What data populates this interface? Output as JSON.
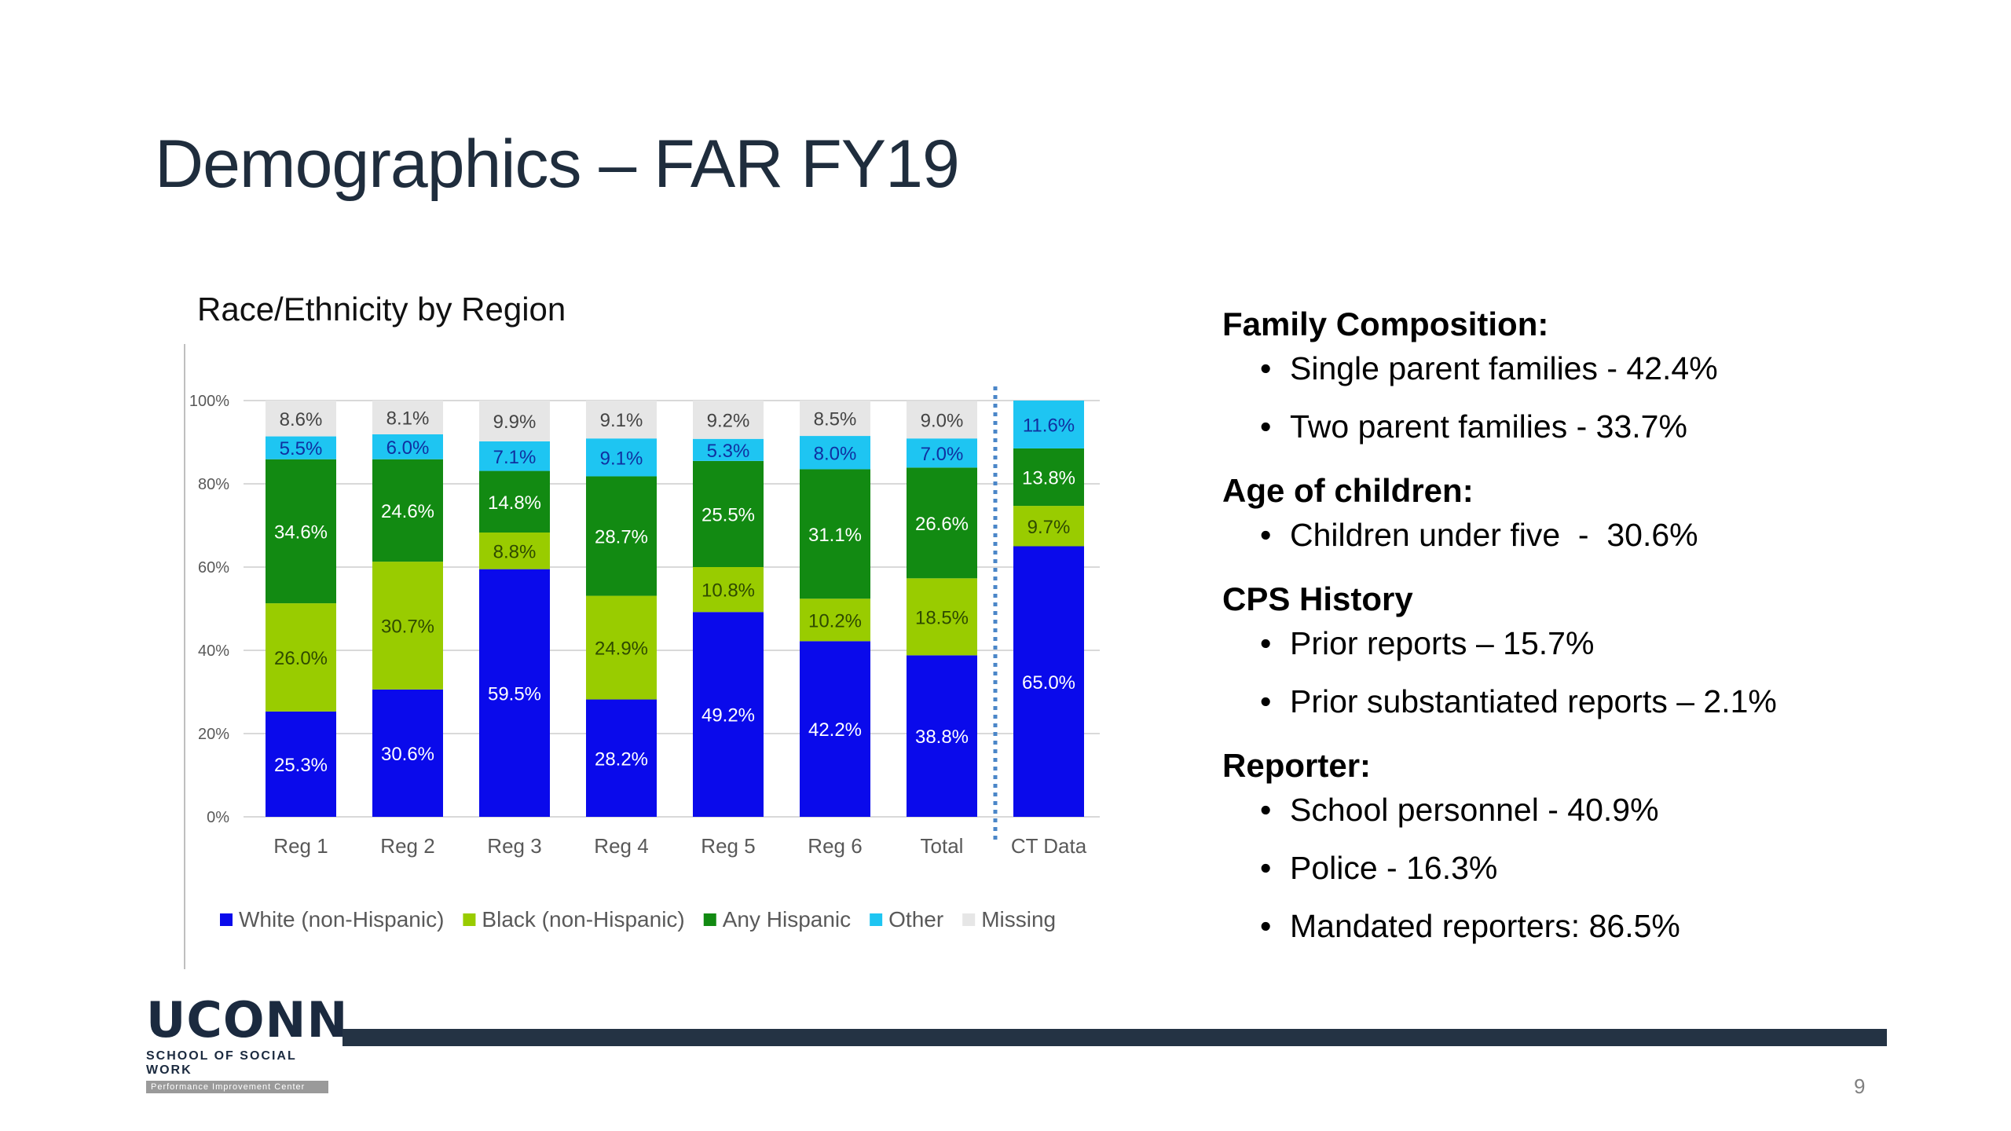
{
  "slide": {
    "title": "Demographics – FAR FY19",
    "page_number": "9"
  },
  "logo": {
    "word": "UCONN",
    "sub": "SCHOOL OF SOCIAL WORK",
    "sub2": "Performance Improvement Center"
  },
  "colors": {
    "white_non_hispanic": "#0a0aeb",
    "black_non_hispanic": "#99cc00",
    "any_hispanic": "#128a12",
    "other": "#1ec5f2",
    "missing": "#e6e6e6",
    "footer_bar": "#243344"
  },
  "chart_data": {
    "type": "bar",
    "stacked": true,
    "title": "Race/Ethnicity by Region",
    "categories": [
      "Reg 1",
      "Reg 2",
      "Reg 3",
      "Reg 4",
      "Reg 5",
      "Reg 6",
      "Total",
      "CT Data"
    ],
    "series": [
      {
        "name": "White (non-Hispanic)",
        "values": [
          25.3,
          30.6,
          59.5,
          28.2,
          49.2,
          42.2,
          38.8,
          65.0
        ],
        "labels": [
          "25.3%",
          "30.6%",
          "59.5%",
          "28.2%",
          "49.2%",
          "42.2%",
          "38.8%",
          "65.0%"
        ]
      },
      {
        "name": "Black (non-Hispanic)",
        "values": [
          26.0,
          30.7,
          8.8,
          24.9,
          10.8,
          10.2,
          18.5,
          9.7
        ],
        "labels": [
          "26.0%",
          "30.7%",
          "8.8%",
          "24.9%",
          "10.8%",
          "10.2%",
          "18.5%",
          "9.7%"
        ]
      },
      {
        "name": "Any Hispanic",
        "values": [
          34.6,
          24.6,
          14.8,
          28.7,
          25.5,
          31.1,
          26.6,
          13.8
        ],
        "labels": [
          "34.6%",
          "24.6%",
          "14.8%",
          "28.7%",
          "25.5%",
          "31.1%",
          "26.6%",
          "13.8%"
        ]
      },
      {
        "name": "Other",
        "values": [
          5.5,
          6.0,
          7.1,
          9.1,
          5.3,
          8.0,
          7.0,
          11.6
        ],
        "labels": [
          "5.5%",
          "6.0%",
          "7.1%",
          "9.1%",
          "5.3%",
          "8.0%",
          "7.0%",
          "11.6%"
        ]
      },
      {
        "name": "Missing",
        "values": [
          8.6,
          8.1,
          9.9,
          9.1,
          9.2,
          8.5,
          9.0,
          null
        ],
        "labels": [
          "8.6%",
          "8.1%",
          "9.9%",
          "9.1%",
          "9.2%",
          "8.5%",
          "9.0%",
          ""
        ]
      }
    ],
    "ylim": [
      0,
      100
    ],
    "yticks": [
      "0%",
      "20%",
      "40%",
      "60%",
      "80%",
      "100%"
    ],
    "grid": true,
    "legend": "bottom",
    "separator_before": "CT Data"
  },
  "info": {
    "sections": [
      {
        "heading": "Family Composition:",
        "items": [
          "Single parent families - 42.4%",
          "Two parent families - 33.7%"
        ]
      },
      {
        "heading": "Age of children:",
        "items": [
          "Children under five  -  30.6%"
        ]
      },
      {
        "heading": "CPS History",
        "items": [
          "Prior reports – 15.7%",
          "Prior substantiated reports – 2.1%"
        ]
      },
      {
        "heading": "Reporter:",
        "items": [
          "School personnel - 40.9%",
          "Police - 16.3%",
          "Mandated reporters: 86.5%"
        ]
      }
    ]
  }
}
